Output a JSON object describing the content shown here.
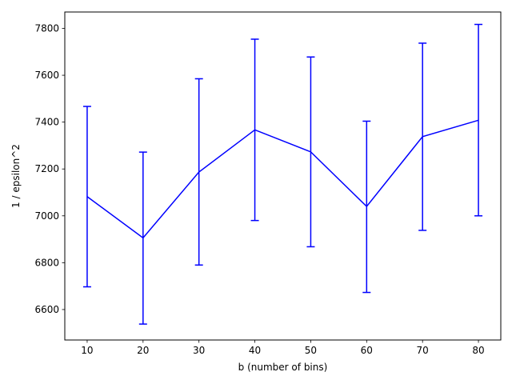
{
  "chart_data": {
    "type": "line",
    "title": "",
    "xlabel": "b (number of bins)",
    "ylabel": "1 / epsilon^2",
    "xlim": [
      6,
      84
    ],
    "ylim": [
      6470,
      7870
    ],
    "grid": false,
    "legend": "none",
    "x_ticks": [
      10,
      20,
      30,
      40,
      50,
      60,
      70,
      80
    ],
    "x_tick_labels": [
      "10",
      "20",
      "30",
      "40",
      "50",
      "60",
      "70",
      "80"
    ],
    "y_ticks": [
      6600,
      6800,
      7000,
      7200,
      7400,
      7600,
      7800
    ],
    "y_tick_labels": [
      "6600",
      "6800",
      "7000",
      "7200",
      "7400",
      "7600",
      "7800"
    ],
    "series": [
      {
        "color": "#0000ff",
        "errorbars": true,
        "points": [
          {
            "x": 10,
            "y": 7082,
            "err_low": 6697,
            "err_high": 7467
          },
          {
            "x": 20,
            "y": 6906,
            "err_low": 6538,
            "err_high": 7272
          },
          {
            "x": 30,
            "y": 7187,
            "err_low": 6790,
            "err_high": 7585
          },
          {
            "x": 40,
            "y": 7367,
            "err_low": 6980,
            "err_high": 7754
          },
          {
            "x": 50,
            "y": 7273,
            "err_low": 6868,
            "err_high": 7678
          },
          {
            "x": 60,
            "y": 7040,
            "err_low": 6673,
            "err_high": 7404
          },
          {
            "x": 70,
            "y": 7338,
            "err_low": 6938,
            "err_high": 7737
          },
          {
            "x": 80,
            "y": 7408,
            "err_low": 7000,
            "err_high": 7817
          }
        ]
      }
    ]
  }
}
